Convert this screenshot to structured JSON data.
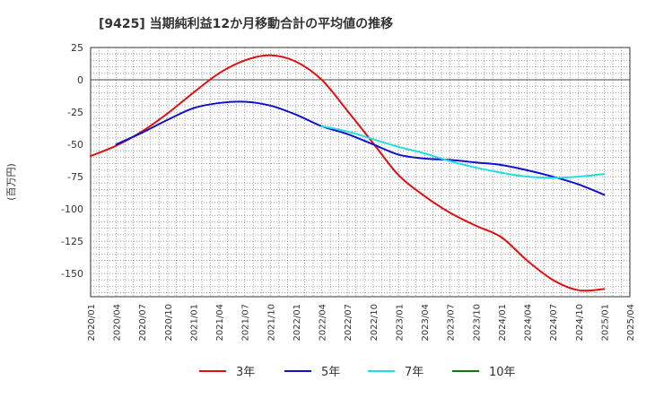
{
  "chart_data": {
    "type": "line",
    "title": "[9425]  当期純利益12か月移動合計の平均値の推移",
    "ylabel": "(百万円)",
    "xlabel": "",
    "ylim": [
      -168,
      25
    ],
    "yticks": [
      25,
      0,
      -25,
      -50,
      -75,
      -100,
      -125,
      -150
    ],
    "x_ticks": [
      "2020/01",
      "2020/04",
      "2020/07",
      "2020/10",
      "2021/01",
      "2021/04",
      "2021/07",
      "2021/10",
      "2022/01",
      "2022/04",
      "2022/07",
      "2022/10",
      "2023/01",
      "2023/04",
      "2023/07",
      "2023/10",
      "2024/01",
      "2024/04",
      "2024/07",
      "2024/10",
      "2025/01",
      "2025/04"
    ],
    "grid": true,
    "legend_position": "bottom",
    "series": [
      {
        "name": "3年",
        "color": "#dd1111",
        "points": [
          [
            "2020/01",
            -59
          ],
          [
            "2020/04",
            -51
          ],
          [
            "2020/07",
            -40
          ],
          [
            "2020/10",
            -26
          ],
          [
            "2021/01",
            -10
          ],
          [
            "2021/04",
            5
          ],
          [
            "2021/07",
            15
          ],
          [
            "2021/10",
            19
          ],
          [
            "2022/01",
            14
          ],
          [
            "2022/04",
            0
          ],
          [
            "2022/07",
            -24
          ],
          [
            "2022/10",
            -49
          ],
          [
            "2023/01",
            -74
          ],
          [
            "2023/04",
            -90
          ],
          [
            "2023/07",
            -103
          ],
          [
            "2023/10",
            -113
          ],
          [
            "2024/01",
            -122
          ],
          [
            "2024/04",
            -140
          ],
          [
            "2024/07",
            -155
          ],
          [
            "2024/10",
            -163
          ],
          [
            "2025/01",
            -162
          ]
        ]
      },
      {
        "name": "5年",
        "color": "#1111cc",
        "points": [
          [
            "2020/04",
            -50
          ],
          [
            "2020/07",
            -41
          ],
          [
            "2020/10",
            -31
          ],
          [
            "2021/01",
            -22
          ],
          [
            "2021/04",
            -18
          ],
          [
            "2021/07",
            -17
          ],
          [
            "2021/10",
            -20
          ],
          [
            "2022/01",
            -27
          ],
          [
            "2022/04",
            -36
          ],
          [
            "2022/07",
            -42
          ],
          [
            "2022/10",
            -50
          ],
          [
            "2023/01",
            -58
          ],
          [
            "2023/04",
            -61
          ],
          [
            "2023/07",
            -62
          ],
          [
            "2023/10",
            -64
          ],
          [
            "2024/01",
            -66
          ],
          [
            "2024/04",
            -70
          ],
          [
            "2024/07",
            -75
          ],
          [
            "2024/10",
            -81
          ],
          [
            "2025/01",
            -89
          ]
        ]
      },
      {
        "name": "7年",
        "color": "#22dddd",
        "points": [
          [
            "2022/04",
            -36
          ],
          [
            "2022/07",
            -40
          ],
          [
            "2022/10",
            -46
          ],
          [
            "2023/01",
            -52
          ],
          [
            "2023/04",
            -57
          ],
          [
            "2023/07",
            -63
          ],
          [
            "2023/10",
            -68
          ],
          [
            "2024/01",
            -72
          ],
          [
            "2024/04",
            -75
          ],
          [
            "2024/07",
            -76
          ],
          [
            "2024/10",
            -75
          ],
          [
            "2025/01",
            -73
          ]
        ]
      },
      {
        "name": "10年",
        "color": "#117711",
        "points": []
      }
    ]
  }
}
